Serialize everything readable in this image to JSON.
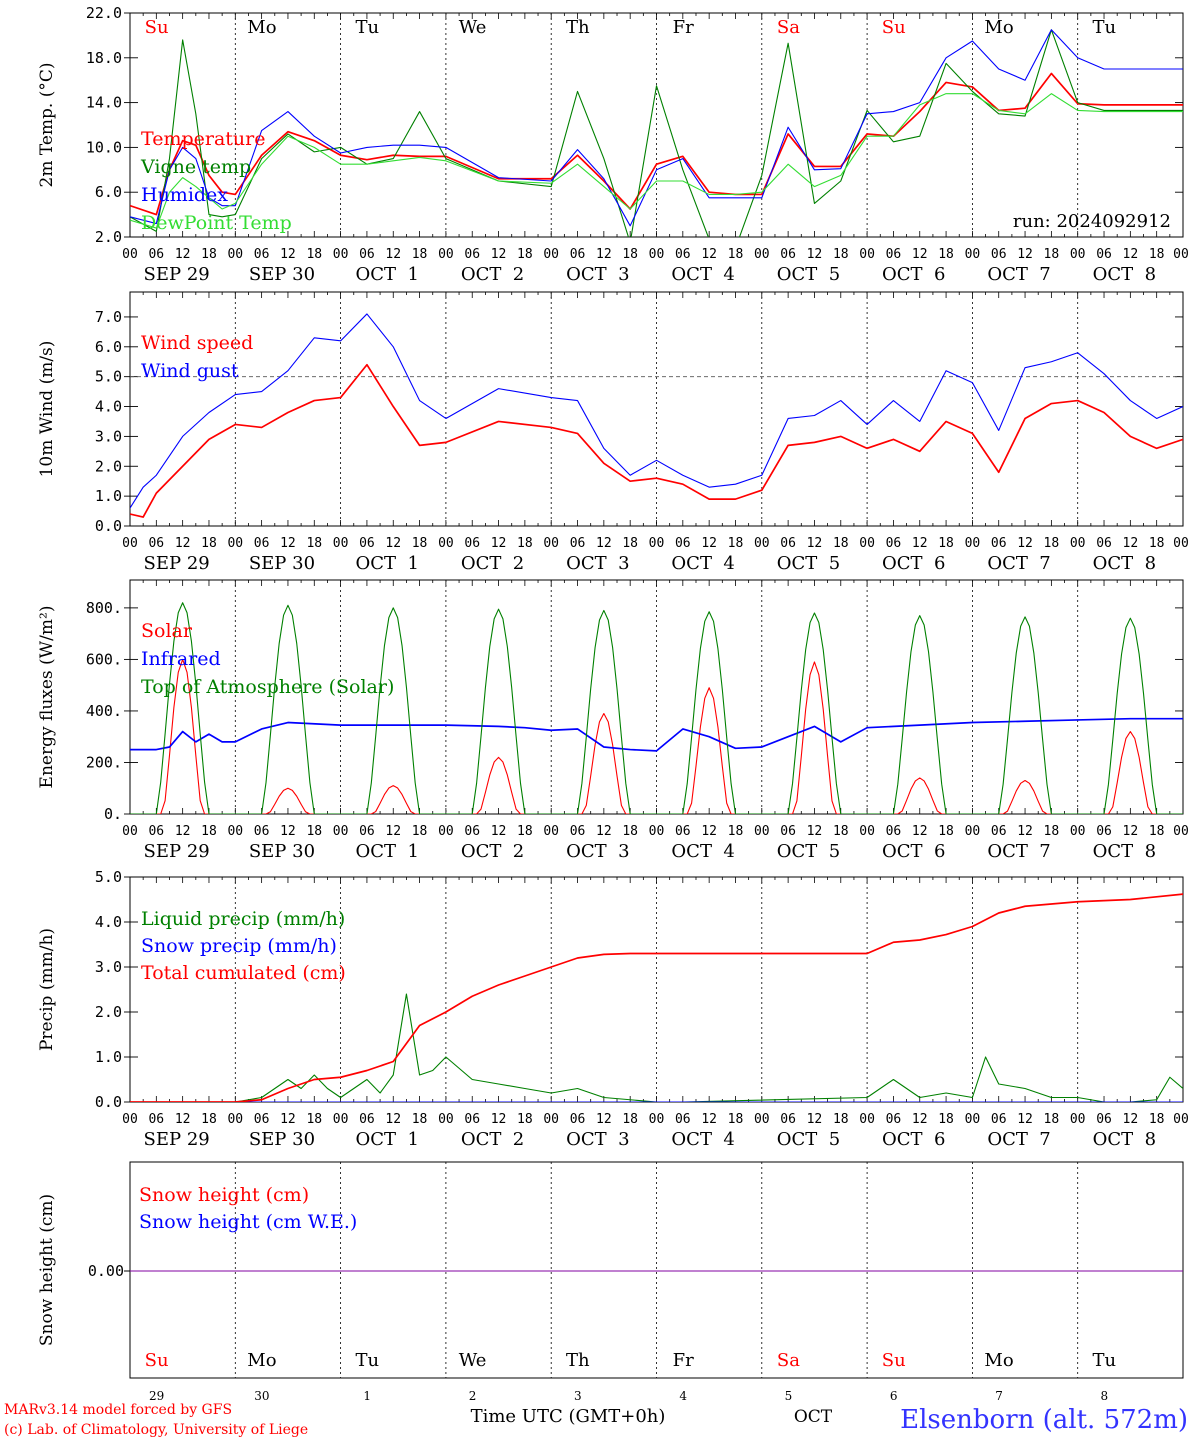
{
  "footer": {
    "credit1": "MARv3.14 model forced by GFS",
    "credit2": "(c) Lab. of Climatology, University of Liege",
    "xlabel": "Time UTC (GMT+0h)",
    "month_label": "OCT",
    "station": "Elsenborn (alt. 572m)"
  },
  "colors": {
    "red": "#ff0000",
    "green": "#008000",
    "blue": "#0000ff",
    "lightgreen": "#33dd33",
    "weekend": "#ff0000",
    "weekday": "#000000",
    "snow": "#8000a0"
  },
  "time_axis": {
    "hour_ticks": [
      "00",
      "06",
      "12",
      "18"
    ],
    "days": [
      {
        "date": "SEP 29",
        "weekday": "Su",
        "daynum": "29",
        "weekend": true
      },
      {
        "date": "SEP 30",
        "weekday": "Mo",
        "daynum": "30",
        "weekend": false
      },
      {
        "date": "OCT  1",
        "weekday": "Tu",
        "daynum": "1",
        "weekend": false
      },
      {
        "date": "OCT  2",
        "weekday": "We",
        "daynum": "2",
        "weekend": false
      },
      {
        "date": "OCT  3",
        "weekday": "Th",
        "daynum": "3",
        "weekend": false
      },
      {
        "date": "OCT  4",
        "weekday": "Fr",
        "daynum": "4",
        "weekend": false
      },
      {
        "date": "OCT  5",
        "weekday": "Sa",
        "daynum": "5",
        "weekend": true
      },
      {
        "date": "OCT  6",
        "weekday": "Su",
        "daynum": "6",
        "weekend": true
      },
      {
        "date": "OCT  7",
        "weekday": "Mo",
        "daynum": "7",
        "weekend": false
      },
      {
        "date": "OCT  8",
        "weekday": "Tu",
        "daynum": "8",
        "weekend": false
      }
    ],
    "final_tick": "00"
  },
  "chart_data": [
    {
      "id": "temp",
      "type": "line",
      "ylabel": "2m Temp. (°C)",
      "ylim": [
        2.0,
        22.0
      ],
      "yticks": [
        "2.0",
        "6.0",
        "10.0",
        "14.0",
        "18.0",
        "22.0"
      ],
      "annotation": "run: 2024092912",
      "x_unit": "hours since 2024-09-29 00 UTC",
      "series": [
        {
          "name": "Temperature",
          "color": "red",
          "x": [
            0,
            6,
            9,
            12,
            15,
            18,
            21,
            24,
            30,
            36,
            42,
            48,
            54,
            60,
            66,
            72,
            84,
            96,
            102,
            108,
            114,
            120,
            126,
            132,
            138,
            144,
            150,
            156,
            162,
            168,
            174,
            180,
            186,
            192,
            198,
            204,
            210,
            216,
            222,
            228,
            234,
            240
          ],
          "y": [
            4.8,
            4.0,
            8,
            10.6,
            10.2,
            7.5,
            6.0,
            5.8,
            9.3,
            11.4,
            10.6,
            9.3,
            8.9,
            9.3,
            9.2,
            9.2,
            7.2,
            7.2,
            9.3,
            7.0,
            4.5,
            8.5,
            9.2,
            6.0,
            5.8,
            5.8,
            11.2,
            8.3,
            8.3,
            11.2,
            11.0,
            13.2,
            15.8,
            15.4,
            13.3,
            13.5,
            16.6,
            13.9,
            13.8,
            13.8,
            13.8,
            13.8
          ]
        },
        {
          "name": "Vigne temp",
          "color": "green",
          "x": [
            0,
            6,
            9,
            12,
            15,
            18,
            21,
            24,
            30,
            36,
            42,
            48,
            54,
            60,
            66,
            72,
            84,
            96,
            102,
            108,
            114,
            120,
            126,
            132,
            138,
            144,
            150,
            156,
            162,
            168,
            174,
            180,
            186,
            192,
            198,
            204,
            210,
            216,
            222,
            228,
            234,
            240
          ],
          "y": [
            3.8,
            2.5,
            9,
            19.6,
            13,
            4,
            3.8,
            4,
            9,
            11.2,
            9.6,
            10,
            8.5,
            9,
            13.2,
            9,
            7,
            6.5,
            15,
            9,
            1.5,
            15.5,
            8,
            1.8,
            1,
            7.5,
            19.3,
            5,
            7,
            13.3,
            10.5,
            11,
            17.5,
            15,
            13,
            12.8,
            20.5,
            14,
            13.3,
            13.3,
            13.3,
            13.3
          ]
        },
        {
          "name": "Humidex",
          "color": "blue",
          "x": [
            0,
            6,
            9,
            12,
            15,
            18,
            21,
            24,
            30,
            36,
            42,
            48,
            54,
            60,
            66,
            72,
            84,
            96,
            102,
            108,
            114,
            120,
            126,
            132,
            138,
            144,
            150,
            156,
            162,
            168,
            174,
            180,
            186,
            192,
            198,
            204,
            210,
            216,
            222,
            228,
            234,
            240
          ],
          "y": [
            3.8,
            3.2,
            8,
            10,
            9,
            5.5,
            4.8,
            4.8,
            11.5,
            13.2,
            11,
            9.5,
            10,
            10.2,
            10.2,
            10,
            7.3,
            7,
            9.8,
            7.2,
            3,
            8,
            9,
            5.5,
            5.5,
            5.5,
            11.8,
            8,
            8.1,
            13,
            13.2,
            14,
            18,
            19.5,
            17,
            16,
            20.5,
            18,
            17,
            17,
            17,
            17
          ]
        },
        {
          "name": "DewPoint Temp",
          "color": "lightgreen",
          "x": [
            0,
            6,
            9,
            12,
            15,
            18,
            21,
            24,
            30,
            36,
            42,
            48,
            54,
            60,
            66,
            72,
            84,
            96,
            102,
            108,
            114,
            120,
            126,
            132,
            138,
            144,
            150,
            156,
            162,
            168,
            174,
            180,
            186,
            192,
            198,
            204,
            210,
            216,
            222,
            228,
            234,
            240
          ],
          "y": [
            3.5,
            2.8,
            6,
            7.3,
            6.5,
            5.5,
            4.5,
            5,
            8.5,
            11,
            10,
            8.5,
            8.5,
            8.8,
            9.1,
            8.8,
            7,
            6.8,
            8.5,
            6.5,
            4.5,
            7,
            7,
            5.8,
            5.8,
            6,
            8.5,
            6.5,
            7.5,
            11,
            11,
            13.8,
            14.8,
            14.8,
            13.3,
            13,
            14.8,
            13.3,
            13.2,
            13.2,
            13.2,
            13.2
          ]
        }
      ]
    },
    {
      "id": "wind",
      "type": "line",
      "ylabel": "10m Wind (m/s)",
      "ylim": [
        0.0,
        7.5
      ],
      "yticks": [
        "0.0",
        "1.0",
        "2.0",
        "3.0",
        "4.0",
        "5.0",
        "6.0",
        "7.0"
      ],
      "reference_line": 5.0,
      "series": [
        {
          "name": "Wind speed",
          "color": "red",
          "x": [
            0,
            3,
            6,
            12,
            18,
            24,
            30,
            36,
            42,
            48,
            54,
            60,
            66,
            72,
            84,
            96,
            102,
            108,
            114,
            120,
            126,
            132,
            138,
            144,
            150,
            156,
            162,
            168,
            174,
            180,
            186,
            192,
            198,
            204,
            210,
            216,
            222,
            228,
            234,
            240
          ],
          "y": [
            0.4,
            0.3,
            1.1,
            2.0,
            2.9,
            3.4,
            3.3,
            3.8,
            4.2,
            4.3,
            5.4,
            4.0,
            2.7,
            2.8,
            3.5,
            3.3,
            3.1,
            2.1,
            1.5,
            1.6,
            1.4,
            0.9,
            0.9,
            1.2,
            2.7,
            2.8,
            3.0,
            2.6,
            2.9,
            2.5,
            3.5,
            3.1,
            1.8,
            3.6,
            4.1,
            4.2,
            3.8,
            3.0,
            2.6,
            2.9
          ]
        },
        {
          "name": "Wind gust",
          "color": "blue",
          "x": [
            0,
            3,
            6,
            12,
            18,
            24,
            30,
            36,
            42,
            48,
            54,
            60,
            66,
            72,
            84,
            96,
            102,
            108,
            114,
            120,
            126,
            132,
            138,
            144,
            150,
            156,
            162,
            168,
            174,
            180,
            186,
            192,
            198,
            204,
            210,
            216,
            222,
            228,
            234,
            240
          ],
          "y": [
            0.6,
            1.3,
            1.7,
            3.0,
            3.8,
            4.4,
            4.5,
            5.2,
            6.3,
            6.2,
            7.1,
            6.0,
            4.2,
            3.6,
            4.6,
            4.3,
            4.2,
            2.6,
            1.7,
            2.2,
            1.7,
            1.3,
            1.4,
            1.7,
            3.6,
            3.7,
            4.2,
            3.4,
            4.2,
            3.5,
            5.2,
            4.8,
            3.2,
            5.3,
            5.5,
            5.8,
            5.1,
            4.2,
            3.6,
            4.0
          ]
        }
      ]
    },
    {
      "id": "energy",
      "type": "line",
      "ylabel": "Energy fluxes (W/m²)",
      "ylim": [
        0,
        850
      ],
      "yticks": [
        "0.",
        "200.",
        "400.",
        "600.",
        "800."
      ],
      "series": [
        {
          "name": "Solar",
          "color": "red",
          "daily_peak_hour": 12,
          "daily_peaks": [
            600,
            100,
            110,
            220,
            390,
            490,
            590,
            140,
            130,
            320
          ]
        },
        {
          "name": "Infrared",
          "color": "blue",
          "x": [
            0,
            6,
            9,
            12,
            15,
            18,
            21,
            24,
            30,
            36,
            48,
            60,
            72,
            84,
            90,
            96,
            102,
            108,
            114,
            120,
            126,
            132,
            138,
            144,
            150,
            156,
            162,
            168,
            180,
            192,
            204,
            216,
            228,
            240
          ],
          "y": [
            250,
            250,
            260,
            320,
            280,
            310,
            280,
            280,
            330,
            355,
            345,
            345,
            345,
            340,
            335,
            325,
            330,
            260,
            250,
            245,
            330,
            300,
            255,
            260,
            300,
            340,
            280,
            335,
            345,
            355,
            360,
            365,
            370,
            370
          ]
        },
        {
          "name": "Top of Atmosphere (Solar)",
          "color": "green",
          "daily_peak_hour": 12,
          "daily_peaks": [
            820,
            810,
            800,
            795,
            790,
            785,
            780,
            770,
            765,
            760
          ]
        }
      ]
    },
    {
      "id": "precip",
      "type": "line",
      "ylabel": "Precip (mm/h)",
      "ylim": [
        0.0,
        5.0
      ],
      "yticks": [
        "0.0",
        "1.0",
        "2.0",
        "3.0",
        "4.0",
        "5.0"
      ],
      "series": [
        {
          "name": "Liquid precip (mm/h)",
          "color": "green",
          "x": [
            0,
            24,
            30,
            36,
            39,
            42,
            45,
            48,
            54,
            57,
            60,
            63,
            66,
            69,
            72,
            78,
            84,
            90,
            96,
            102,
            108,
            120,
            126,
            168,
            174,
            180,
            186,
            192,
            195,
            198,
            204,
            210,
            216,
            222,
            228,
            234,
            237,
            240
          ],
          "y": [
            0,
            0,
            0.1,
            0.5,
            0.3,
            0.6,
            0.3,
            0.1,
            0.5,
            0.2,
            0.6,
            2.4,
            0.6,
            0.7,
            1.0,
            0.5,
            0.4,
            0.3,
            0.2,
            0.3,
            0.1,
            0,
            0,
            0.1,
            0.5,
            0.1,
            0.2,
            0.1,
            1.0,
            0.4,
            0.3,
            0.1,
            0.1,
            0,
            0,
            0.05,
            0.55,
            0.3
          ]
        },
        {
          "name": "Snow precip (mm/h)",
          "color": "blue",
          "x": [
            0,
            240
          ],
          "y": [
            0,
            0
          ]
        },
        {
          "name": "Total cumulated (cm)",
          "color": "red",
          "x": [
            0,
            24,
            30,
            36,
            42,
            48,
            54,
            60,
            66,
            72,
            78,
            84,
            90,
            96,
            102,
            108,
            114,
            120,
            144,
            168,
            174,
            180,
            186,
            192,
            198,
            204,
            216,
            228,
            240
          ],
          "y": [
            0,
            0,
            0.05,
            0.3,
            0.5,
            0.55,
            0.7,
            0.9,
            1.7,
            2.0,
            2.35,
            2.6,
            2.8,
            3.0,
            3.2,
            3.28,
            3.3,
            3.3,
            3.3,
            3.3,
            3.55,
            3.6,
            3.72,
            3.9,
            4.2,
            4.35,
            4.45,
            4.5,
            4.62
          ]
        }
      ]
    },
    {
      "id": "snow",
      "type": "line",
      "ylabel": "Snow height (cm)",
      "yticks": [
        "0.00"
      ],
      "series": [
        {
          "name": "Snow height (cm)",
          "color": "red",
          "x": [
            0,
            240
          ],
          "y": [
            0,
            0
          ]
        },
        {
          "name": "Snow height (cm W.E.)",
          "color": "blue",
          "x": [
            0,
            240
          ],
          "y": [
            0,
            0
          ]
        }
      ]
    }
  ]
}
